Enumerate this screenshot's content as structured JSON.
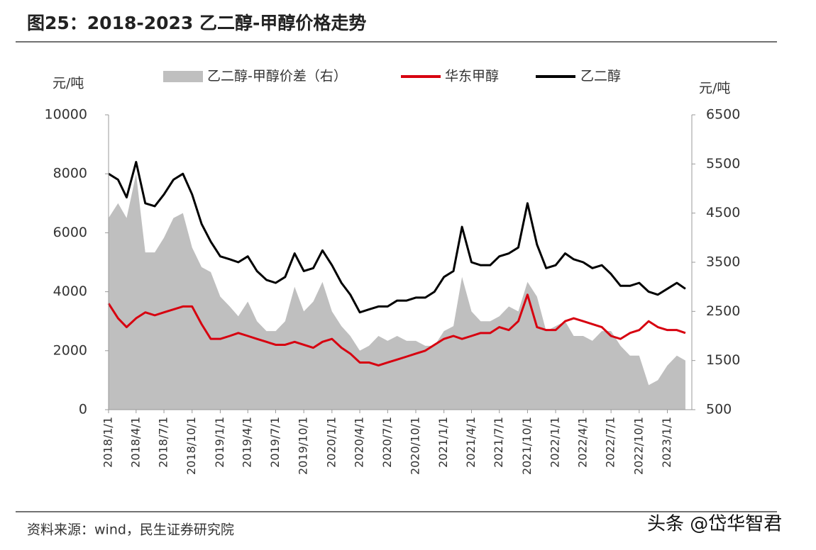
{
  "chart_data": {
    "type": "line",
    "title": "图25：2018-2023 乙二醇-甲醇价格走势",
    "ylabel": "元/吨",
    "y2label": "元/吨",
    "source": "资料来源：wind，民生证券研究院",
    "watermark": "头条 @岱华智君",
    "x": [
      "2018/1/1",
      "2018/2/1",
      "2018/3/1",
      "2018/4/1",
      "2018/5/1",
      "2018/6/1",
      "2018/7/1",
      "2018/8/1",
      "2018/9/1",
      "2018/10/1",
      "2018/11/1",
      "2018/12/1",
      "2019/1/1",
      "2019/2/1",
      "2019/3/1",
      "2019/4/1",
      "2019/5/1",
      "2019/6/1",
      "2019/7/1",
      "2019/8/1",
      "2019/9/1",
      "2019/10/1",
      "2019/11/1",
      "2019/12/1",
      "2020/1/1",
      "2020/2/1",
      "2020/3/1",
      "2020/4/1",
      "2020/5/1",
      "2020/6/1",
      "2020/7/1",
      "2020/8/1",
      "2020/9/1",
      "2020/10/1",
      "2020/11/1",
      "2020/12/1",
      "2021/1/1",
      "2021/2/1",
      "2021/3/1",
      "2021/4/1",
      "2021/5/1",
      "2021/6/1",
      "2021/7/1",
      "2021/8/1",
      "2021/9/1",
      "2021/10/1",
      "2021/11/1",
      "2021/12/1",
      "2022/1/1",
      "2022/2/1",
      "2022/3/1",
      "2022/4/1",
      "2022/5/1",
      "2022/6/1",
      "2022/7/1",
      "2022/8/1",
      "2022/9/1",
      "2022/10/1",
      "2022/11/1",
      "2022/12/1",
      "2023/1/1",
      "2023/2/1",
      "2023/3/1"
    ],
    "series": [
      {
        "name": "乙二醇-甲醇价差（右）",
        "type": "area",
        "axis": "y2",
        "color": "#bfbfbf",
        "values": [
          4400,
          4700,
          4400,
          5300,
          3700,
          3700,
          4000,
          4400,
          4500,
          3800,
          3400,
          3300,
          2800,
          2600,
          2400,
          2700,
          2300,
          2100,
          2100,
          2300,
          3000,
          2500,
          2700,
          3100,
          2500,
          2200,
          2000,
          1700,
          1800,
          2000,
          1900,
          2000,
          1900,
          1900,
          1800,
          1800,
          2100,
          2200,
          3200,
          2500,
          2300,
          2300,
          2400,
          2600,
          2500,
          3100,
          2800,
          2100,
          2200,
          2300,
          2000,
          2000,
          1900,
          2100,
          2100,
          1800,
          1600,
          1600,
          1000,
          1100,
          1400,
          1600,
          1500
        ]
      },
      {
        "name": "华东甲醇",
        "type": "line",
        "color": "#d7000f",
        "values": [
          3600,
          3100,
          2800,
          3100,
          3300,
          3200,
          3300,
          3400,
          3500,
          3500,
          2900,
          2400,
          2400,
          2500,
          2600,
          2500,
          2400,
          2300,
          2200,
          2200,
          2300,
          2200,
          2100,
          2300,
          2400,
          2100,
          1900,
          1600,
          1600,
          1500,
          1600,
          1700,
          1800,
          1900,
          2000,
          2200,
          2400,
          2500,
          2400,
          2500,
          2600,
          2600,
          2800,
          2700,
          3000,
          3900,
          2800,
          2700,
          2700,
          3000,
          3100,
          3000,
          2900,
          2800,
          2500,
          2400,
          2600,
          2700,
          3000,
          2800,
          2700,
          2700,
          2600
        ]
      },
      {
        "name": "乙二醇",
        "type": "line",
        "color": "#000000",
        "values": [
          8000,
          7800,
          7200,
          8400,
          7000,
          6900,
          7300,
          7800,
          8000,
          7300,
          6300,
          5700,
          5200,
          5100,
          5000,
          5200,
          4700,
          4400,
          4300,
          4500,
          5300,
          4700,
          4800,
          5400,
          4900,
          4300,
          3900,
          3300,
          3400,
          3500,
          3500,
          3700,
          3700,
          3800,
          3800,
          4000,
          4500,
          4700,
          6200,
          5000,
          4900,
          4900,
          5200,
          5300,
          5500,
          7000,
          5600,
          4800,
          4900,
          5300,
          5100,
          5000,
          4800,
          4900,
          4600,
          4200,
          4200,
          4300,
          4000,
          3900,
          4100,
          4300,
          4100
        ]
      }
    ],
    "xlim": [
      "2018/1/1",
      "2023/3/22"
    ],
    "xticks": [
      "2018/1/1",
      "2018/4/1",
      "2018/7/1",
      "2018/10/1",
      "2019/1/1",
      "2019/4/1",
      "2019/7/1",
      "2019/10/1",
      "2020/1/1",
      "2020/4/1",
      "2020/7/1",
      "2020/10/1",
      "2021/1/1",
      "2021/4/1",
      "2021/7/1",
      "2021/10/1",
      "2022/1/1",
      "2022/4/1",
      "2022/7/1",
      "2022/10/1",
      "2023/1/1"
    ],
    "ylim": [
      0,
      10000
    ],
    "yticks": [
      0,
      2000,
      4000,
      6000,
      8000,
      10000
    ],
    "y2lim": [
      500,
      6500
    ],
    "y2ticks": [
      500,
      1500,
      2500,
      3500,
      4500,
      5500,
      6500
    ]
  }
}
